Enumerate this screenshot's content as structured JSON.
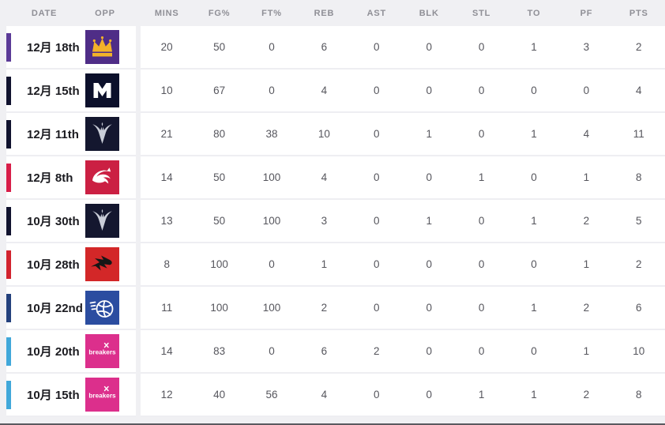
{
  "table": {
    "columns": [
      "DATE",
      "OPP",
      "MINS",
      "FG%",
      "FT%",
      "REB",
      "AST",
      "BLK",
      "STL",
      "TO",
      "PF",
      "PTS"
    ],
    "rows": [
      {
        "date": "12月 18th",
        "team": "sydney-kings",
        "accent": "#5b3a97",
        "stats": [
          "20",
          "50",
          "0",
          "6",
          "0",
          "0",
          "0",
          "1",
          "3",
          "2"
        ]
      },
      {
        "date": "12月 15th",
        "team": "melbourne-united",
        "accent": "#10122e",
        "stats": [
          "10",
          "67",
          "0",
          "4",
          "0",
          "0",
          "0",
          "0",
          "0",
          "4"
        ]
      },
      {
        "date": "12月 11th",
        "team": "se-melbourne-phoenix",
        "accent": "#10122e",
        "stats": [
          "21",
          "80",
          "38",
          "10",
          "0",
          "1",
          "0",
          "1",
          "4",
          "11"
        ]
      },
      {
        "date": "12月 8th",
        "team": "perth-wildcats",
        "accent": "#d81e49",
        "stats": [
          "14",
          "50",
          "100",
          "4",
          "0",
          "0",
          "1",
          "0",
          "1",
          "8"
        ]
      },
      {
        "date": "10月 30th",
        "team": "se-melbourne-phoenix",
        "accent": "#10122e",
        "stats": [
          "13",
          "50",
          "100",
          "3",
          "0",
          "1",
          "0",
          "1",
          "2",
          "5"
        ]
      },
      {
        "date": "10月 28th",
        "team": "illawarra-hawks",
        "accent": "#d2232e",
        "stats": [
          "8",
          "100",
          "0",
          "1",
          "0",
          "0",
          "0",
          "0",
          "1",
          "2"
        ]
      },
      {
        "date": "10月 22nd",
        "team": "brisbane-bullets",
        "accent": "#24417d",
        "stats": [
          "11",
          "100",
          "100",
          "2",
          "0",
          "0",
          "0",
          "1",
          "2",
          "6"
        ]
      },
      {
        "date": "10月 20th",
        "team": "nz-breakers",
        "accent": "#41a8da",
        "stats": [
          "14",
          "83",
          "0",
          "6",
          "2",
          "0",
          "0",
          "0",
          "1",
          "10"
        ]
      },
      {
        "date": "10月 15th",
        "team": "nz-breakers",
        "accent": "#41a8da",
        "stats": [
          "12",
          "40",
          "56",
          "4",
          "0",
          "0",
          "1",
          "1",
          "2",
          "8"
        ]
      }
    ]
  },
  "logos": {
    "sydney-kings": {
      "bg": "#4f2d87",
      "fg": "#f3b229"
    },
    "melbourne-united": {
      "bg": "#0c102b",
      "fg": "#ffffff"
    },
    "se-melbourne-phoenix": {
      "bg": "#14172f",
      "fg": "#c9cdd8"
    },
    "perth-wildcats": {
      "bg": "#cb2043",
      "fg": "#ffffff"
    },
    "illawarra-hawks": {
      "bg": "#d32728",
      "fg": "#161616"
    },
    "brisbane-bullets": {
      "bg": "#2b4da0",
      "fg": "#ffffff"
    },
    "nz-breakers": {
      "bg": "#dc2f8c",
      "fg": "#ffffff",
      "wordmark": "breakers"
    }
  },
  "colors": {
    "page_background": "#f0f0f3",
    "row_background": "#ffffff",
    "header_text": "#8f8f96",
    "date_text": "#1b1b20",
    "stat_text": "#56565d"
  }
}
